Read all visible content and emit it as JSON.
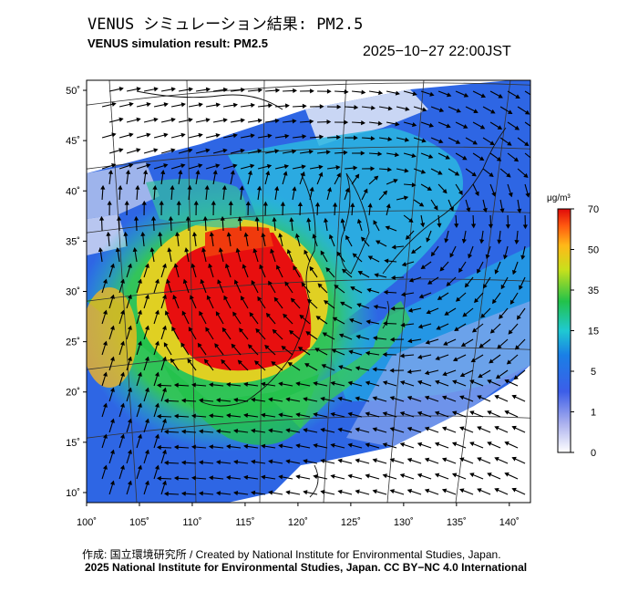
{
  "header": {
    "title_jp": "VENUS シミュレーション結果: PM2.5",
    "title_en": "VENUS simulation result: PM2.5",
    "timestamp": "2025−10−27 22:00JST"
  },
  "map": {
    "lat_ticks": [
      "50˚",
      "45˚",
      "40˚",
      "35˚",
      "30˚",
      "25˚",
      "20˚",
      "15˚",
      "10˚"
    ],
    "lon_ticks": [
      "100˚",
      "105˚",
      "110˚",
      "115˚",
      "120˚",
      "125˚",
      "130˚",
      "135˚",
      "140˚"
    ],
    "lat_values": [
      50,
      45,
      40,
      35,
      30,
      25,
      20,
      15,
      10
    ],
    "lon_values": [
      100,
      105,
      110,
      115,
      120,
      125,
      130,
      135,
      140
    ],
    "extent": {
      "lon": [
        100,
        142
      ],
      "lat": [
        9,
        51
      ]
    }
  },
  "colorbar": {
    "unit": "μg/m³",
    "ticks": [
      "70",
      "50",
      "35",
      "15",
      "5",
      "1",
      "0"
    ],
    "colors": [
      "#e8e8f8",
      "#6f78dc",
      "#1a7fe6",
      "#1fc9d2",
      "#22c24a",
      "#b6dc1e",
      "#ffd21a",
      "#ff7a10",
      "#e80f0f"
    ]
  },
  "footer": {
    "credit_jp": "作成: 国立環境研究所 / Created by National Institute for Environmental Studies, Japan.",
    "copyright": "2025 National Institute for Environmental Studies, Japan. CC BY−NC 4.0 International"
  }
}
